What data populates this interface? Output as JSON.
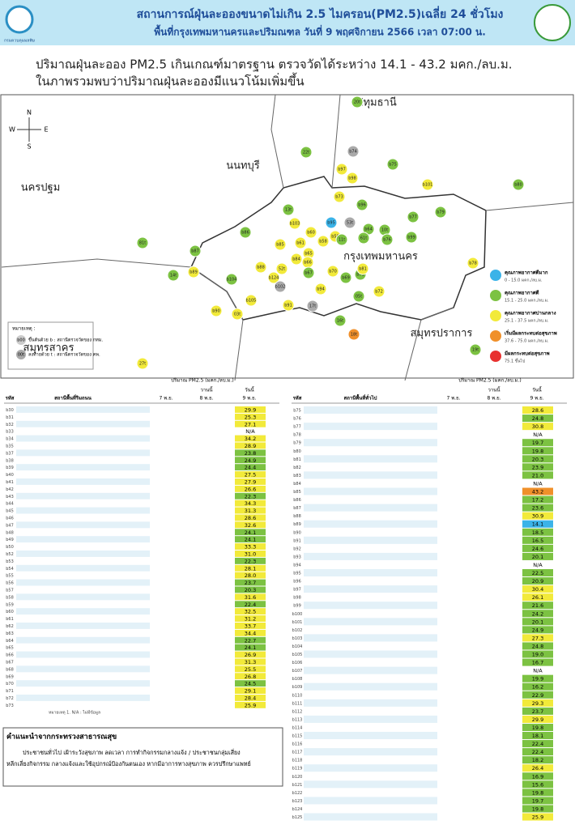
{
  "header": {
    "org": "กรมควบคุมมลพิษ",
    "title": "สถานการณ์ฝุ่นละอองขนาดไม่เกิน 2.5 ไมครอน(PM2.5)เฉลี่ย 24 ชั่วโมง",
    "subtitle": "พื้นที่กรุงเทพมหานครและปริมณฑล วันที่ 9 พฤศจิกายน 2566 เวลา 07:00 น."
  },
  "summary": [
    "ปริมาณฝุ่นละออง PM2.5 เกินเกณฑ์มาตรฐาน ตรวจวัดได้ระหว่าง 14.1 - 43.2 มคก./ลบ.ม.",
    "ในภาพรวมพบว่าปริมาณฝุ่นละอองมีแนวโน้มเพิ่มขึ้น"
  ],
  "map": {
    "compass": [
      "N",
      "S",
      "E",
      "W"
    ],
    "provinces": [
      "ปทุมธานี",
      "นนทบุรี",
      "นครปฐม",
      "กรุงเทพมหานคร",
      "สมุทรสาคร",
      "สมุทรปราการ"
    ],
    "note_title": "หมายเหตุ :",
    "notes": [
      {
        "code": "b00",
        "text": "ขึ้นต้นด้วย b : สถานีตรวจวัดของ กทม."
      },
      {
        "code": "00t",
        "text": "ลงท้ายด้วย t : สถานีตรวจวัดของ คพ."
      }
    ],
    "levels": [
      {
        "label": "คุณภาพอากาศดีมาก",
        "range": "0 - 15.0 มคก./ลบ.ม.",
        "color": "#3bb3e8",
        "max": 15
      },
      {
        "label": "คุณภาพอากาศดี",
        "range": "15.1 - 25.0 มคก./ลบ.ม.",
        "color": "#7cc242",
        "max": 25
      },
      {
        "label": "คุณภาพอากาศปานกลาง",
        "range": "25.1 - 37.5 มคก./ลบ.ม.",
        "color": "#f2ea3a",
        "max": 37.5
      },
      {
        "label": "เริ่มมีผลกระทบต่อสุขภาพ",
        "range": "37.6 - 75.0 มคก./ลบ.ม.",
        "color": "#f0902a",
        "max": 75
      },
      {
        "label": "มีผลกระทบต่อสุขภาพ",
        "range": "75.1 ขึ้นไป",
        "color": "#e8312f"
      }
    ],
    "markers": [
      {
        "label": "20t",
        "color": "#7cc242"
      },
      {
        "label": "22t",
        "color": "#7cc242"
      },
      {
        "label": "b74",
        "color": "#aaaaaa"
      },
      {
        "label": "b75",
        "color": "#7cc242"
      },
      {
        "label": "b97",
        "color": "#f2ea3a"
      },
      {
        "label": "b98",
        "color": "#f2ea3a"
      },
      {
        "label": "b101",
        "color": "#f2ea3a"
      },
      {
        "label": "b80",
        "color": "#7cc242"
      },
      {
        "label": "b73",
        "color": "#f2ea3a"
      },
      {
        "label": "b96",
        "color": "#7cc242"
      },
      {
        "label": "53t",
        "color": "#aaaaaa"
      },
      {
        "label": "b77",
        "color": "#7cc242"
      },
      {
        "label": "b79",
        "color": "#7cc242"
      },
      {
        "label": "13t",
        "color": "#7cc242"
      },
      {
        "label": "b86",
        "color": "#7cc242"
      },
      {
        "label": "b103",
        "color": "#f2ea3a"
      },
      {
        "label": "b95",
        "color": "#3bb3e8"
      },
      {
        "label": "b60",
        "color": "#f2ea3a"
      },
      {
        "label": "b59",
        "color": "#f2ea3a"
      },
      {
        "label": "b61",
        "color": "#f2ea3a"
      },
      {
        "label": "b85",
        "color": "#f2ea3a"
      },
      {
        "label": "b58",
        "color": "#f2ea3a"
      },
      {
        "label": "11t",
        "color": "#7cc242"
      },
      {
        "label": "b64",
        "color": "#7cc242"
      },
      {
        "label": "61t",
        "color": "#7cc242"
      },
      {
        "label": "10t",
        "color": "#7cc242"
      },
      {
        "label": "b76",
        "color": "#7cc242"
      },
      {
        "label": "b99",
        "color": "#7cc242"
      },
      {
        "label": "b87",
        "color": "#7cc242"
      },
      {
        "label": "81t",
        "color": "#7cc242"
      },
      {
        "label": "b65",
        "color": "#f2ea3a"
      },
      {
        "label": "b84",
        "color": "#f2ea3a"
      },
      {
        "label": "b66",
        "color": "#f2ea3a"
      },
      {
        "label": "b88",
        "color": "#f2ea3a"
      },
      {
        "label": "52t",
        "color": "#f2ea3a"
      },
      {
        "label": "b67",
        "color": "#7cc242"
      },
      {
        "label": "b124",
        "color": "#f2ea3a"
      },
      {
        "label": "b102",
        "color": "#aaaaaa"
      },
      {
        "label": "b89",
        "color": "#f2ea3a"
      },
      {
        "label": "14t",
        "color": "#7cc242"
      },
      {
        "label": "b104",
        "color": "#7cc242"
      },
      {
        "label": "b69",
        "color": "#7cc242"
      },
      {
        "label": "b71",
        "color": "#7cc242"
      },
      {
        "label": "b70",
        "color": "#f2ea3a"
      },
      {
        "label": "b78",
        "color": "#f2ea3a"
      },
      {
        "label": "b94",
        "color": "#f2ea3a"
      },
      {
        "label": "b72",
        "color": "#f2ea3a"
      },
      {
        "label": "b105",
        "color": "#f2ea3a"
      },
      {
        "label": "b91",
        "color": "#f2ea3a"
      },
      {
        "label": "17t",
        "color": "#aaaaaa"
      },
      {
        "label": "05t",
        "color": "#7cc242"
      },
      {
        "label": "b90",
        "color": "#f2ea3a"
      },
      {
        "label": "03t",
        "color": "#f2ea3a"
      },
      {
        "label": "16t",
        "color": "#7cc242"
      },
      {
        "label": "18t",
        "color": "#f0902a"
      },
      {
        "label": "19t",
        "color": "#7cc242"
      },
      {
        "label": "27t",
        "color": "#f2ea3a"
      },
      {
        "label": "b81",
        "color": "#f2ea3a"
      }
    ]
  },
  "tables": [
    {
      "unit": "ปริมาณ PM2.5 (มคก./ลบ.ม.)",
      "code_header": "รหัส",
      "name_header": "สถานีพื้นที่ริมถนน",
      "day1": "7 พ.ย.",
      "yesterday": "วานนี้",
      "day2": "8 พ.ย.",
      "today": "วันนี้",
      "day3": "9 พ.ย.",
      "rows": [
        [
          "b30",
          "29.9"
        ],
        [
          "b31",
          "25.3"
        ],
        [
          "b32",
          "27.1"
        ],
        [
          "b33",
          "N/A"
        ],
        [
          "b34",
          "34.2"
        ],
        [
          "b35",
          "28.9"
        ],
        [
          "b37",
          "23.8"
        ],
        [
          "b38",
          "24.9"
        ],
        [
          "b39",
          "24.4"
        ],
        [
          "b40",
          "27.5"
        ],
        [
          "b41",
          "27.9"
        ],
        [
          "b42",
          "26.6"
        ],
        [
          "b43",
          "22.3"
        ],
        [
          "b44",
          "34.3"
        ],
        [
          "b45",
          "31.3"
        ],
        [
          "b46",
          "28.6"
        ],
        [
          "b47",
          "32.6"
        ],
        [
          "b48",
          "24.1"
        ],
        [
          "b49",
          "24.1"
        ],
        [
          "b50",
          "33.3"
        ],
        [
          "b52",
          "31.0"
        ],
        [
          "b53",
          "22.3"
        ],
        [
          "b54",
          "28.1"
        ],
        [
          "b55",
          "28.0"
        ],
        [
          "b56",
          "23.7"
        ],
        [
          "b57",
          "20.3"
        ],
        [
          "b58",
          "31.6"
        ],
        [
          "b59",
          "22.4"
        ],
        [
          "b60",
          "32.5"
        ],
        [
          "b61",
          "31.2"
        ],
        [
          "b62",
          "33.7"
        ],
        [
          "b63",
          "34.4"
        ],
        [
          "b64",
          "22.7"
        ],
        [
          "b65",
          "24.1"
        ],
        [
          "b66",
          "26.9"
        ],
        [
          "b67",
          "31.3"
        ],
        [
          "b68",
          "25.5"
        ],
        [
          "b69",
          "26.8"
        ],
        [
          "b70",
          "24.5"
        ],
        [
          "b71",
          "29.1"
        ],
        [
          "b72",
          "28.4"
        ],
        [
          "b73",
          "25.9"
        ]
      ]
    },
    {
      "unit": "ปริมาณ PM2.5 (มคก./ลบ.ม.)",
      "code_header": "รหัส",
      "name_header": "สถานีพื้นที่ทั่วไป",
      "day1": "7 พ.ย.",
      "yesterday": "วานนี้",
      "day2": "8 พ.ย.",
      "today": "วันนี้",
      "day3": "9 พ.ย.",
      "rows": [
        [
          "b75",
          "28.6"
        ],
        [
          "b76",
          "24.8"
        ],
        [
          "b77",
          "30.8"
        ],
        [
          "b78",
          "N/A"
        ],
        [
          "b79",
          "19.7"
        ],
        [
          "b80",
          "19.8"
        ],
        [
          "b81",
          "20.3"
        ],
        [
          "b82",
          "23.9"
        ],
        [
          "b83",
          "21.0"
        ],
        [
          "b84",
          "N/A"
        ],
        [
          "b85",
          "43.2"
        ],
        [
          "b86",
          "17.2"
        ],
        [
          "b87",
          "23.6"
        ],
        [
          "b88",
          "30.9"
        ],
        [
          "b89",
          "14.1"
        ],
        [
          "b90",
          "18.5"
        ],
        [
          "b91",
          "16.5"
        ],
        [
          "b92",
          "24.6"
        ],
        [
          "b93",
          "20.1"
        ],
        [
          "b94",
          "N/A"
        ],
        [
          "b95",
          "22.5"
        ],
        [
          "b96",
          "20.9"
        ],
        [
          "b97",
          "30.4"
        ],
        [
          "b98",
          "26.1"
        ],
        [
          "b99",
          "21.6"
        ],
        [
          "b100",
          "24.2"
        ],
        [
          "b101",
          "20.1"
        ],
        [
          "b102",
          "24.9"
        ],
        [
          "b103",
          "27.3"
        ],
        [
          "b104",
          "24.8"
        ],
        [
          "b105",
          "19.0"
        ],
        [
          "b106",
          "16.7"
        ],
        [
          "b107",
          "N/A"
        ],
        [
          "b108",
          "19.9"
        ],
        [
          "b109",
          "16.2"
        ],
        [
          "b110",
          "22.9"
        ],
        [
          "b111",
          "29.3"
        ],
        [
          "b112",
          "23.7"
        ],
        [
          "b113",
          "29.9"
        ],
        [
          "b114",
          "19.8"
        ],
        [
          "b115",
          "18.1"
        ],
        [
          "b116",
          "22.4"
        ],
        [
          "b117",
          "22.4"
        ],
        [
          "b118",
          "18.2"
        ],
        [
          "b119",
          "26.4"
        ],
        [
          "b120",
          "16.9"
        ],
        [
          "b121",
          "15.6"
        ],
        [
          "b122",
          "19.8"
        ],
        [
          "b123",
          "19.7"
        ],
        [
          "b124",
          "19.8"
        ],
        [
          "b125",
          "25.9"
        ]
      ]
    }
  ],
  "footnote": "หมายเหตุ 1. N/A : ไม่มีข้อมูล",
  "advice": {
    "title": "คำแนะนำจากกระทรวงสาธารณสุข",
    "lines": [
      "ประชาชนทั่วไป เฝ้าระวังสุขภาพ ลดเวลา การทำกิจกรรมกลางแจ้ง / ประชาชนกลุ่มเสี่ยง",
      "หลีกเลี่ยงกิจกรรม กลางแจ้งและใช้อุปกรณ์ป้องกันตนเอง หากมีอาการทางสุขภาพ ควรปรึกษาแพทย์"
    ]
  }
}
